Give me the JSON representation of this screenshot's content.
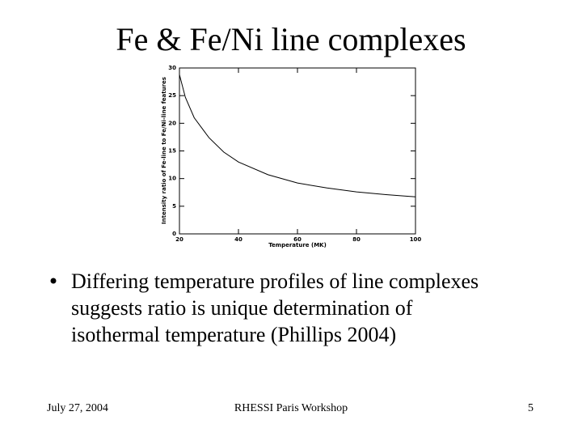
{
  "slide": {
    "title": "Fe & Fe/Ni line complexes",
    "bullet": [
      "Differing temperature profiles of line complexes",
      "suggests ratio is unique determination of",
      "isothermal temperature (Phillips 2004)"
    ],
    "footer": {
      "date": "July 27, 2004",
      "event": "RHESSI Paris Workshop",
      "page": "5"
    }
  },
  "chart_data": {
    "type": "line",
    "x_label": "Temperature (MK)",
    "y_label": "Intensity ratio of Fe-line to Fe/Ni-line features",
    "x": [
      20,
      22,
      25,
      30,
      35,
      40,
      50,
      60,
      70,
      80,
      90,
      100
    ],
    "values": [
      28.8,
      24.7,
      21,
      17.4,
      14.8,
      13,
      10.7,
      9.2,
      8.3,
      7.6,
      7.1,
      6.7
    ],
    "color": "#000000",
    "xlim": [
      20,
      100
    ],
    "xticks": [
      20,
      40,
      60,
      80,
      100
    ],
    "ylim": [
      0,
      30
    ],
    "yticks": [
      0,
      5,
      10,
      15,
      20,
      25,
      30
    ]
  }
}
